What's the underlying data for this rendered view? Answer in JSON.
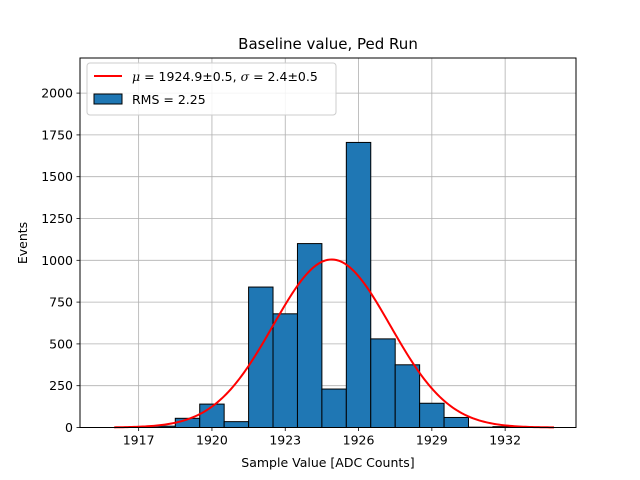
{
  "chart_data": {
    "type": "bar",
    "title": "Baseline value, Ped Run",
    "xlabel": "Sample Value [ADC Counts]",
    "ylabel": "Events",
    "xlim": [
      1914.6,
      1934.9
    ],
    "ylim": [
      0,
      2210
    ],
    "xticks": [
      1917,
      1920,
      1923,
      1926,
      1929,
      1932
    ],
    "yticks": [
      0,
      250,
      500,
      750,
      1000,
      1250,
      1500,
      1750,
      2000
    ],
    "grid": true,
    "legend_position": "upper-left",
    "bins": {
      "left_edges": [
        1917.5,
        1918.5,
        1919.5,
        1920.5,
        1921.5,
        1922.5,
        1923.5,
        1924.5,
        1925.5,
        1926.5,
        1927.5,
        1928.5,
        1929.5,
        1930.5,
        1931.5
      ],
      "counts": [
        8,
        55,
        140,
        35,
        840,
        680,
        1100,
        230,
        1705,
        530,
        375,
        145,
        60,
        2,
        5
      ],
      "width": 1
    },
    "fit": {
      "label": "$\\mu = 1924.9\\pm0.5, \\sigma = 2.4\\pm0.5",
      "mu": 1924.9,
      "sigma": 2.4,
      "amplitude": 1005,
      "x_range": [
        1916,
        1934
      ],
      "color": "#ff0000"
    },
    "series": [
      {
        "name": "RMS = 2.25",
        "color": "#1f77b4",
        "edge_color": "#000000"
      }
    ]
  }
}
